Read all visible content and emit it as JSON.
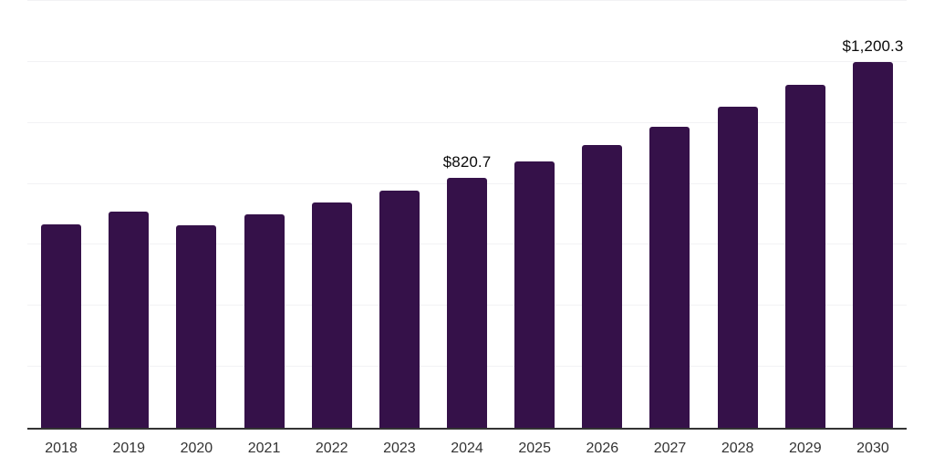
{
  "chart": {
    "background_color": "#FFFFFF",
    "bar_color": "#351149",
    "grid_color": "#F2F2F4",
    "axis_color": "#333333",
    "value_label_color": "#0B0B0B",
    "tick_label_color": "#333333"
  },
  "chart_data": {
    "type": "bar",
    "title": "",
    "xlabel": "",
    "ylabel": "",
    "categories": [
      "2018",
      "2019",
      "2020",
      "2021",
      "2022",
      "2023",
      "2024",
      "2025",
      "2026",
      "2027",
      "2028",
      "2029",
      "2030"
    ],
    "values": [
      667,
      710,
      664,
      700,
      738,
      778,
      820.7,
      874,
      926,
      986,
      1053,
      1126,
      1200.3
    ],
    "bar_labels": [
      "",
      "",
      "",
      "",
      "",
      "",
      "$820.7",
      "",
      "",
      "",
      "",
      "",
      "$1,200.3"
    ],
    "ylim": [
      0,
      1400
    ],
    "grid_step": 200,
    "grid": "horizontal",
    "y_tick_labels_shown": false,
    "legend_position": "none"
  }
}
